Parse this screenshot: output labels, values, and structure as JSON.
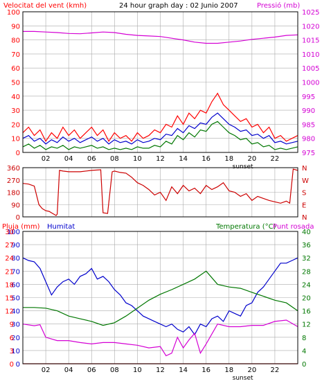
{
  "header": {
    "left": "Velocitat del vent (kmh)",
    "center": "24 hour graph day : 02 Junio 2007",
    "right": "Pressió (mb)"
  },
  "colors": {
    "red": "#ff0000",
    "magenta": "#d400d4",
    "blue": "#0000cc",
    "green": "#007700",
    "darkred": "#cc0000",
    "grid": "#aaaaaa",
    "frame": "#000000"
  },
  "chart_data": [
    {
      "type": "line",
      "name": "wind-pressure",
      "xlabel_tick_marker": "sunset",
      "x_ticks": [
        "02",
        "04",
        "06",
        "08",
        "10",
        "12",
        "14",
        "16",
        "18",
        "20",
        "22"
      ],
      "left_axis": {
        "title": "Velocitat del vent (kmh)",
        "ticks": [
          0,
          10,
          20,
          30,
          40,
          50,
          60,
          70,
          80,
          90,
          100
        ],
        "ylim": [
          0,
          100
        ]
      },
      "right_axis": {
        "title": "Pressió (mb)",
        "ticks": [
          975,
          980,
          985,
          990,
          995,
          1000,
          1005,
          1010,
          1015,
          1020,
          1025
        ],
        "ylim": [
          975,
          1025
        ]
      },
      "series": [
        {
          "axis": "right",
          "color": "#d400d4",
          "x": [
            0,
            1,
            2,
            3,
            4,
            5,
            6,
            7,
            8,
            9,
            10,
            11,
            12,
            13,
            14,
            15,
            16,
            17,
            18,
            19,
            20,
            21,
            22,
            23,
            24
          ],
          "y": [
            1018.0,
            1018.0,
            1017.8,
            1017.6,
            1017.3,
            1017.2,
            1017.5,
            1017.8,
            1017.6,
            1017.0,
            1016.6,
            1016.4,
            1016.2,
            1015.6,
            1015.0,
            1014.2,
            1013.8,
            1013.8,
            1014.2,
            1014.6,
            1015.2,
            1015.6,
            1016.0,
            1016.6,
            1016.8
          ]
        },
        {
          "axis": "left",
          "color": "#ff0000",
          "x": [
            0,
            0.5,
            1,
            1.5,
            2,
            2.5,
            3,
            3.5,
            4,
            4.5,
            5,
            5.5,
            6,
            6.5,
            7,
            7.5,
            8,
            8.5,
            9,
            9.5,
            10,
            10.5,
            11,
            11.5,
            12,
            12.5,
            13,
            13.5,
            14,
            14.5,
            15,
            15.5,
            16,
            16.5,
            17,
            17.5,
            18,
            18.5,
            19,
            19.5,
            20,
            20.5,
            21,
            21.5,
            22,
            22.5,
            23,
            23.5,
            24
          ],
          "y": [
            14,
            18,
            12,
            16,
            8,
            14,
            10,
            18,
            12,
            16,
            10,
            14,
            18,
            12,
            16,
            8,
            14,
            10,
            12,
            8,
            14,
            10,
            12,
            16,
            14,
            20,
            18,
            26,
            20,
            28,
            24,
            30,
            28,
            36,
            42,
            34,
            30,
            26,
            22,
            24,
            18,
            20,
            14,
            18,
            10,
            12,
            8,
            10,
            12
          ]
        },
        {
          "axis": "left",
          "color": "#0000cc",
          "x": [
            0,
            0.5,
            1,
            1.5,
            2,
            2.5,
            3,
            3.5,
            4,
            4.5,
            5,
            5.5,
            6,
            6.5,
            7,
            7.5,
            8,
            8.5,
            9,
            9.5,
            10,
            10.5,
            11,
            11.5,
            12,
            12.5,
            13,
            13.5,
            14,
            14.5,
            15,
            15.5,
            16,
            16.5,
            17,
            17.5,
            18,
            18.5,
            19,
            19.5,
            20,
            20.5,
            21,
            21.5,
            22,
            22.5,
            23,
            23.5,
            24
          ],
          "y": [
            10,
            12,
            8,
            10,
            6,
            9,
            7,
            11,
            8,
            10,
            7,
            9,
            11,
            8,
            10,
            6,
            9,
            7,
            8,
            6,
            9,
            7,
            8,
            10,
            9,
            13,
            12,
            17,
            14,
            19,
            17,
            21,
            20,
            25,
            28,
            24,
            20,
            18,
            15,
            16,
            12,
            13,
            10,
            12,
            7,
            8,
            6,
            7,
            8
          ]
        },
        {
          "axis": "left",
          "color": "#007700",
          "x": [
            0,
            0.5,
            1,
            1.5,
            2,
            2.5,
            3,
            3.5,
            4,
            4.5,
            5,
            5.5,
            6,
            6.5,
            7,
            7.5,
            8,
            8.5,
            9,
            9.5,
            10,
            10.5,
            11,
            11.5,
            12,
            12.5,
            13,
            13.5,
            14,
            14.5,
            15,
            15.5,
            16,
            16.5,
            17,
            17.5,
            18,
            18.5,
            19,
            19.5,
            20,
            20.5,
            21,
            21.5,
            22,
            22.5,
            23,
            23.5,
            24
          ],
          "y": [
            4,
            6,
            3,
            5,
            2,
            4,
            3,
            5,
            2,
            4,
            3,
            4,
            5,
            3,
            4,
            2,
            3,
            2,
            3,
            2,
            4,
            3,
            3,
            5,
            4,
            8,
            6,
            12,
            9,
            14,
            11,
            16,
            15,
            20,
            22,
            18,
            14,
            12,
            9,
            10,
            6,
            7,
            4,
            5,
            2,
            3,
            2,
            3,
            4
          ]
        }
      ]
    },
    {
      "type": "line",
      "name": "wind-direction",
      "x_ticks": [],
      "left_axis": {
        "ticks": [
          0,
          90,
          180,
          270,
          360
        ],
        "ylim": [
          0,
          360
        ]
      },
      "right_axis": {
        "ticks": [
          "N",
          "E",
          "S",
          "W",
          "N"
        ]
      },
      "series": [
        {
          "axis": "left",
          "color": "#cc0000",
          "x": [
            0,
            0.5,
            1,
            1.4,
            1.7,
            2,
            2.3,
            2.6,
            2.9,
            3.0,
            3.2,
            3.5,
            4,
            5,
            6,
            6.8,
            7.0,
            7.4,
            7.8,
            8.0,
            8.5,
            9,
            9.5,
            10,
            10.5,
            11,
            11.5,
            12,
            12.5,
            13,
            13.5,
            14,
            14.5,
            15,
            15.5,
            16,
            16.5,
            17,
            17.5,
            18,
            18.5,
            19,
            19.5,
            20,
            20.5,
            21,
            21.5,
            22,
            22.5,
            23,
            23.3,
            23.6,
            24
          ],
          "y": [
            245,
            240,
            225,
            90,
            60,
            45,
            40,
            25,
            10,
            20,
            340,
            335,
            330,
            330,
            340,
            345,
            30,
            25,
            330,
            335,
            325,
            320,
            290,
            250,
            230,
            200,
            160,
            180,
            120,
            220,
            170,
            230,
            190,
            210,
            170,
            230,
            200,
            220,
            250,
            190,
            180,
            150,
            170,
            120,
            150,
            135,
            120,
            110,
            100,
            115,
            100,
            350,
            340
          ]
        }
      ]
    },
    {
      "type": "line",
      "name": "rain-humidity-temperature-dewpoint",
      "xlabel_tick_marker": "sunset",
      "x_ticks": [
        "02",
        "04",
        "06",
        "08",
        "10",
        "12",
        "14",
        "16",
        "18",
        "20",
        "22"
      ],
      "header_left": "Pluja (mm)",
      "header_left2": "Humitat",
      "header_right": "Temperatura (°C)",
      "header_right2": "Punt rosada",
      "left_axis": {
        "ticks": [
          0,
          10,
          20,
          30,
          40,
          50,
          60,
          70,
          80,
          90,
          100
        ],
        "ylim": [
          0,
          100
        ]
      },
      "left_axis2": {
        "ticks": [
          0,
          3,
          6,
          9,
          12,
          15,
          18,
          21,
          24,
          27,
          30
        ]
      },
      "right_axis": {
        "ticks": [
          0,
          4,
          8,
          12,
          16,
          20,
          24,
          28,
          32,
          36,
          40
        ],
        "ylim": [
          0,
          40
        ]
      },
      "series": [
        {
          "axis": "left",
          "color": "#0000cc",
          "x": [
            0,
            0.5,
            1,
            1.5,
            2,
            2.5,
            3,
            3.5,
            4,
            4.5,
            5,
            5.5,
            6,
            6.5,
            7,
            7.5,
            8,
            8.5,
            9,
            9.5,
            10,
            10.5,
            11,
            11.5,
            12,
            12.5,
            13,
            13.5,
            14,
            14.5,
            15,
            15.5,
            16,
            16.5,
            17,
            17.5,
            18,
            18.5,
            19,
            19.5,
            20,
            20.5,
            21,
            21.5,
            22,
            22.5,
            23,
            23.5,
            24
          ],
          "y": [
            80,
            78,
            77,
            72,
            62,
            52,
            58,
            62,
            64,
            60,
            66,
            68,
            72,
            64,
            66,
            62,
            56,
            52,
            46,
            44,
            40,
            36,
            34,
            32,
            30,
            28,
            30,
            26,
            24,
            28,
            22,
            30,
            28,
            34,
            36,
            32,
            40,
            38,
            36,
            44,
            46,
            54,
            58,
            64,
            70,
            76,
            76,
            78,
            80
          ]
        },
        {
          "axis": "right",
          "color": "#007700",
          "x": [
            0,
            1,
            2,
            3,
            4,
            5,
            6,
            7,
            8,
            9,
            10,
            11,
            12,
            13,
            14,
            15,
            16,
            17,
            18,
            19,
            20,
            21,
            22,
            23,
            24
          ],
          "y": [
            17,
            17,
            16.8,
            16,
            14.4,
            13.6,
            12.8,
            11.6,
            12.4,
            14.4,
            16.8,
            19.2,
            21,
            22.4,
            24,
            25.6,
            28,
            24,
            23.2,
            22.8,
            21.6,
            20.4,
            19.2,
            18.4,
            16
          ]
        },
        {
          "axis": "right",
          "color": "#d400d4",
          "x": [
            0,
            1,
            1.5,
            2,
            3,
            4,
            5,
            6,
            7,
            8,
            9,
            10,
            11,
            12,
            12.5,
            13,
            13.5,
            14,
            14.5,
            15,
            15.5,
            16,
            17,
            18,
            19,
            20,
            21,
            22,
            23,
            24
          ],
          "y": [
            12,
            11.5,
            11.8,
            8,
            7,
            7,
            6.4,
            6,
            6.4,
            6.4,
            6,
            5.6,
            4.8,
            5.2,
            2.4,
            3.2,
            8,
            4.8,
            7.2,
            9.2,
            3.2,
            6,
            12,
            11.2,
            11.2,
            11.6,
            11.6,
            12.8,
            13.2,
            11.2
          ]
        },
        {
          "axis": "left",
          "color": "#ff0000",
          "x": [
            0,
            24
          ],
          "y": [
            0,
            0
          ]
        }
      ]
    }
  ]
}
